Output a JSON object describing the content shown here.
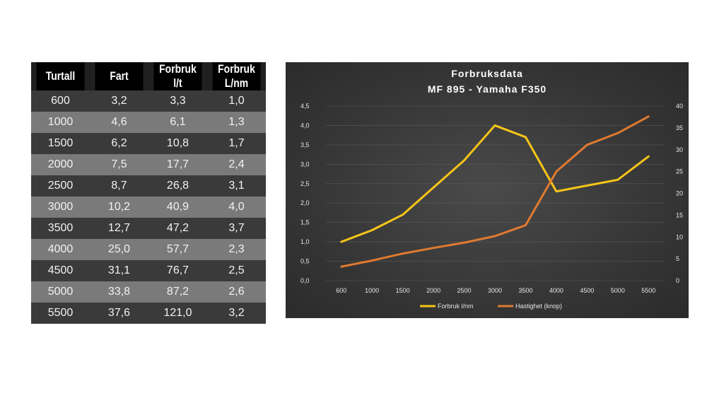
{
  "table": {
    "headers": [
      "Turtall",
      "Fart",
      "Forbruk l/t",
      "Forbruk L/nm"
    ],
    "rows": [
      [
        "600",
        "3,2",
        "3,3",
        "1,0"
      ],
      [
        "1000",
        "4,6",
        "6,1",
        "1,3"
      ],
      [
        "1500",
        "6,2",
        "10,8",
        "1,7"
      ],
      [
        "2000",
        "7,5",
        "17,7",
        "2,4"
      ],
      [
        "2500",
        "8,7",
        "26,8",
        "3,1"
      ],
      [
        "3000",
        "10,2",
        "40,9",
        "4,0"
      ],
      [
        "3500",
        "12,7",
        "47,2",
        "3,7"
      ],
      [
        "4000",
        "25,0",
        "57,7",
        "2,3"
      ],
      [
        "4500",
        "31,1",
        "76,7",
        "2,5"
      ],
      [
        "5000",
        "33,8",
        "87,2",
        "2,6"
      ],
      [
        "5500",
        "37,6",
        "121,0",
        "3,2"
      ]
    ]
  },
  "chart_data": {
    "type": "line",
    "title_line1": "Forbruksdata",
    "title_line2": "MF 895 - Yamaha  F350",
    "categories": [
      "600",
      "1000",
      "1500",
      "2000",
      "2500",
      "3000",
      "3500",
      "4000",
      "4500",
      "5000",
      "5500"
    ],
    "series": [
      {
        "name": "Forbruk l/nm",
        "axis": "left",
        "color": "#f5c518",
        "values": [
          1.0,
          1.3,
          1.7,
          2.4,
          3.1,
          4.0,
          3.7,
          2.3,
          2.45,
          2.6,
          3.2
        ]
      },
      {
        "name": "Hastighet (knop)",
        "axis": "right",
        "color": "#e07a30",
        "values": [
          3.2,
          4.6,
          6.2,
          7.5,
          8.7,
          10.2,
          12.7,
          25.0,
          31.1,
          33.8,
          37.6
        ]
      }
    ],
    "y_left": {
      "min": 0,
      "max": 4.5,
      "ticks": [
        "0,0",
        "0,5",
        "1,0",
        "1,5",
        "2,0",
        "2,5",
        "3,0",
        "3,5",
        "4,0",
        "4,5"
      ]
    },
    "y_right": {
      "min": 0,
      "max": 40,
      "ticks": [
        "0",
        "5",
        "10",
        "15",
        "20",
        "25",
        "30",
        "35",
        "40"
      ]
    },
    "grid": true,
    "legend_position": "bottom",
    "background": "#3c3c3c"
  }
}
